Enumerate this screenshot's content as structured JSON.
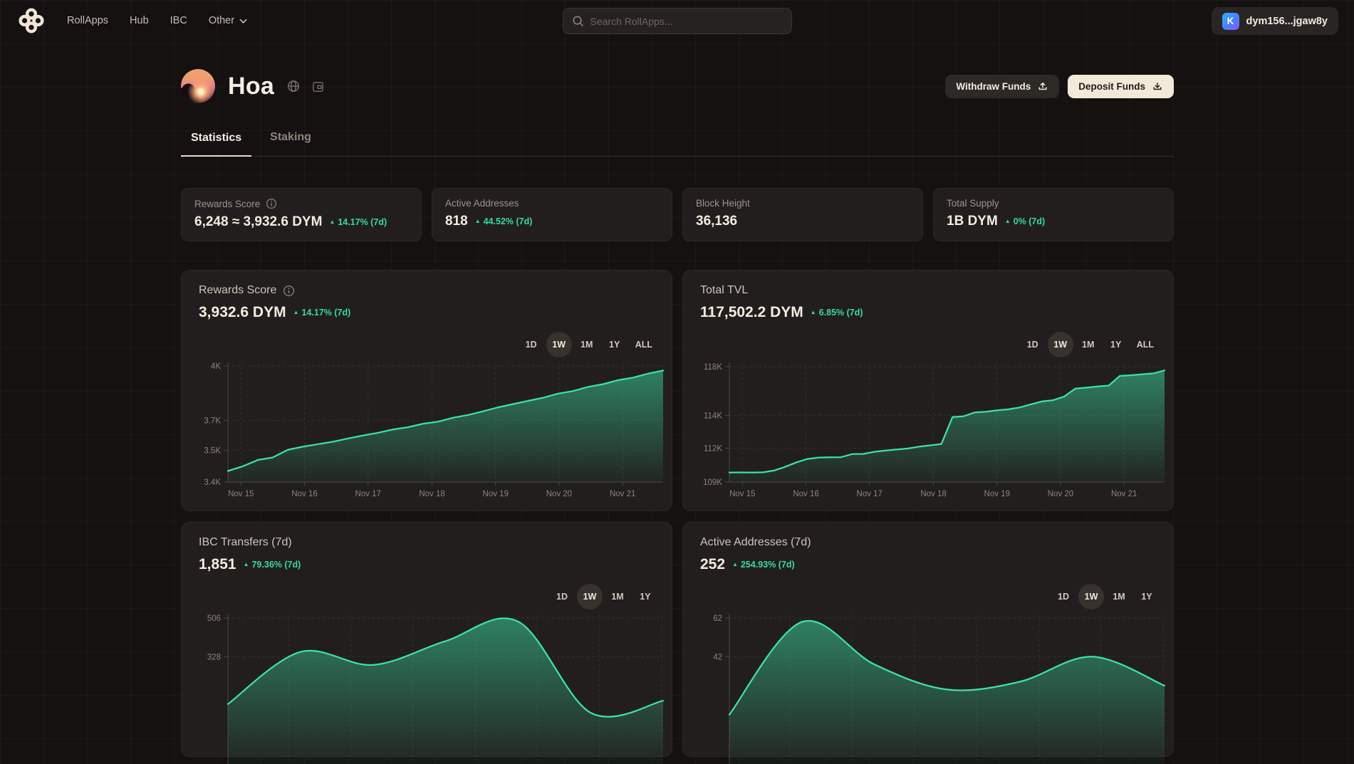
{
  "nav": {
    "items": [
      {
        "label": "RollApps"
      },
      {
        "label": "Hub"
      },
      {
        "label": "IBC"
      },
      {
        "label": "Other",
        "has_dropdown": true
      }
    ],
    "search": {
      "placeholder": "Search RollApps..."
    },
    "wallet": {
      "label": "dym156...jgaw8y",
      "icon_letter": "K"
    }
  },
  "header": {
    "title": "Hoa",
    "withdraw_label": "Withdraw Funds",
    "deposit_label": "Deposit Funds"
  },
  "tabs": [
    {
      "label": "Statistics",
      "active": true
    },
    {
      "label": "Staking",
      "active": false
    }
  ],
  "stat_cards": [
    {
      "label": "Rewards Score",
      "value": "6,248 ≈ 3,932.6 DYM",
      "change": "14.17% (7d)"
    },
    {
      "label": "Active Addresses",
      "value": "818",
      "change": "44.52% (7d)"
    },
    {
      "label": "Block Height",
      "value": "36,136",
      "change": ""
    },
    {
      "label": "Total Supply",
      "value": "1B DYM",
      "change": "0% (7d)"
    }
  ],
  "colors": {
    "accent_green": "#35dd9e",
    "chart_line": "#3be3a4",
    "deposit_button_bg": "#f3e9d8",
    "page_bg": "#141110",
    "panel_bg": "#221e1d"
  },
  "chart_data": [
    {
      "type": "area",
      "title": "Rewards Score",
      "value": "3,932.6 DYM",
      "change": "14.17% (7d)",
      "ranges": [
        "1D",
        "1W",
        "1M",
        "1Y",
        "ALL"
      ],
      "selected_range": "1W",
      "smooth": false,
      "clipped_bottom": false,
      "ylim_note": "non-uniform tick spacing as rendered",
      "y_ticks": [
        {
          "label": "4K",
          "value": 4000,
          "f": 0.03
        },
        {
          "label": "3.7K",
          "value": 3700,
          "f": 0.485
        },
        {
          "label": "3.5K",
          "value": 3500,
          "f": 0.736
        },
        {
          "label": "3.4K",
          "value": 3400,
          "f": 1.0
        }
      ],
      "x_ticks": [
        {
          "label": "Nov 15",
          "f": 0.03
        },
        {
          "label": "Nov 16",
          "f": 0.176
        },
        {
          "label": "Nov 17",
          "f": 0.322
        },
        {
          "label": "Nov 18",
          "f": 0.469
        },
        {
          "label": "Nov 19",
          "f": 0.615
        },
        {
          "label": "Nov 20",
          "f": 0.761
        },
        {
          "label": "Nov 21",
          "f": 0.907
        }
      ],
      "values": [
        3435,
        3450,
        3470,
        3478,
        3505,
        3525,
        3542,
        3558,
        3580,
        3600,
        3618,
        3640,
        3655,
        3678,
        3692,
        3715,
        3730,
        3750,
        3772,
        3790,
        3808,
        3825,
        3848,
        3862,
        3885,
        3900,
        3922,
        3936,
        3958,
        3975
      ]
    },
    {
      "type": "area",
      "title": "Total TVL",
      "value": "117,502.2 DYM",
      "change": "6.85% (7d)",
      "ranges": [
        "1D",
        "1W",
        "1M",
        "1Y",
        "ALL"
      ],
      "selected_range": "1W",
      "smooth": false,
      "clipped_bottom": false,
      "y_ticks": [
        {
          "label": "118K",
          "value": 118000,
          "f": 0.036
        },
        {
          "label": "114K",
          "value": 114000,
          "f": 0.443
        },
        {
          "label": "112K",
          "value": 112000,
          "f": 0.718
        },
        {
          "label": "109K",
          "value": 109000,
          "f": 1.0
        }
      ],
      "x_ticks": [
        {
          "label": "Nov 15",
          "f": 0.03
        },
        {
          "label": "Nov 16",
          "f": 0.176
        },
        {
          "label": "Nov 17",
          "f": 0.322
        },
        {
          "label": "Nov 18",
          "f": 0.469
        },
        {
          "label": "Nov 19",
          "f": 0.615
        },
        {
          "label": "Nov 20",
          "f": 0.761
        },
        {
          "label": "Nov 21",
          "f": 0.907
        }
      ],
      "values": [
        109850,
        109855,
        109850,
        109860,
        110020,
        110350,
        110750,
        111050,
        111180,
        111200,
        111210,
        111480,
        111500,
        111690,
        111800,
        111900,
        111980,
        112100,
        112180,
        112260,
        113900,
        113950,
        114250,
        114300,
        114420,
        114500,
        114650,
        114900,
        115150,
        115250,
        115550,
        116200,
        116280,
        116380,
        116450,
        117250,
        117300,
        117380,
        117450,
        117700
      ]
    },
    {
      "type": "area",
      "title": "IBC Transfers (7d)",
      "value": "1,851",
      "change": "79.36% (7d)",
      "ranges": [
        "1D",
        "1W",
        "1M",
        "1Y"
      ],
      "selected_range": "1W",
      "smooth": true,
      "clipped_bottom": true,
      "y_ticks": [
        {
          "label": "506",
          "value": 506,
          "f": 0.03
        },
        {
          "label": "328",
          "value": 328,
          "f": 0.353
        }
      ],
      "x_ticks": [
        {
          "label": "",
          "f": 0.139
        },
        {
          "label": "",
          "f": 0.282
        },
        {
          "label": "",
          "f": 0.425
        },
        {
          "label": "",
          "f": 0.568
        },
        {
          "label": "",
          "f": 0.711
        },
        {
          "label": "",
          "f": 0.854
        },
        {
          "label": "",
          "f": 0.997
        }
      ],
      "values": [
        110,
        350,
        290,
        400,
        490,
        70,
        125
      ]
    },
    {
      "type": "area",
      "title": "Active Addresses (7d)",
      "value": "252",
      "change": "254.93% (7d)",
      "ranges": [
        "1D",
        "1W",
        "1M",
        "1Y"
      ],
      "selected_range": "1W",
      "smooth": true,
      "clipped_bottom": true,
      "y_ticks": [
        {
          "label": "62",
          "value": 62,
          "f": 0.03
        },
        {
          "label": "42",
          "value": 42,
          "f": 0.353
        }
      ],
      "x_ticks": [
        {
          "label": "",
          "f": 0.139
        },
        {
          "label": "",
          "f": 0.282
        },
        {
          "label": "",
          "f": 0.425
        },
        {
          "label": "",
          "f": 0.568
        },
        {
          "label": "",
          "f": 0.711
        },
        {
          "label": "",
          "f": 0.854
        },
        {
          "label": "",
          "f": 0.997
        }
      ],
      "values": [
        12,
        60,
        38,
        25,
        29,
        42,
        27
      ]
    }
  ]
}
